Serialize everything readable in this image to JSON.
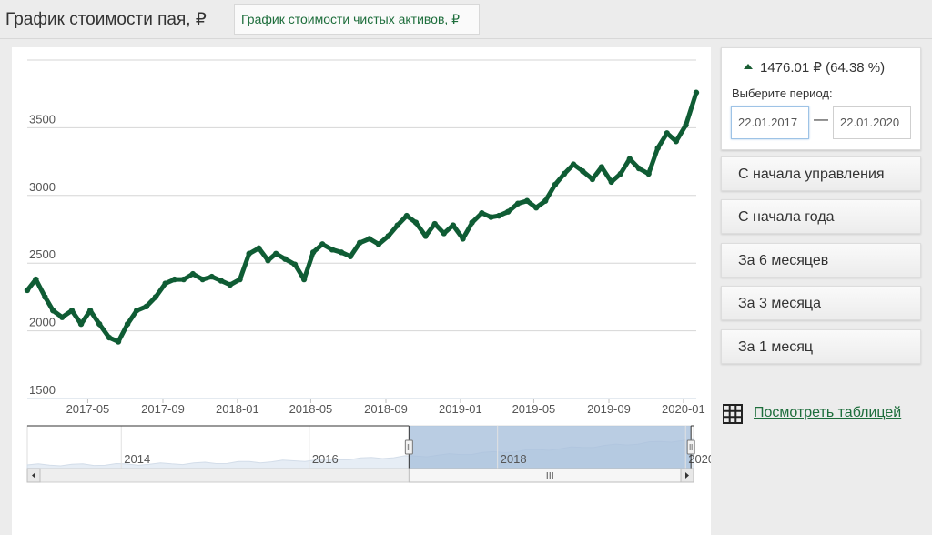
{
  "tabs": [
    {
      "label": "График стоимости пая, ₽",
      "active": true
    },
    {
      "label": "График стоимости чистых активов, ₽",
      "active": false
    }
  ],
  "colors": {
    "accent": "#1e6e3c",
    "line": "#0f5c34",
    "navigator_fill": "#a9c1dc",
    "background": "#ececec"
  },
  "summary": {
    "change_value": "1476.01 ₽",
    "change_percent": "(64.38 %)",
    "trend": "up"
  },
  "period_picker": {
    "label": "Выберите период:",
    "from": "22.01.2017",
    "to": "22.01.2020",
    "separator": "—"
  },
  "period_buttons": [
    {
      "label": "С начала управления"
    },
    {
      "label": "С начала года"
    },
    {
      "label": "За 6 месяцев"
    },
    {
      "label": "За 3 месяца"
    },
    {
      "label": "За 1 месяц"
    }
  ],
  "table_link": {
    "label": "Посмотреть таблицей",
    "icon": "table-grid-icon"
  },
  "chart_data": {
    "type": "line",
    "title": "",
    "xlabel": "",
    "ylabel": "",
    "ylim": [
      1500,
      4000
    ],
    "y_ticks": [
      "1500",
      "2000",
      "2500",
      "3000",
      "3500"
    ],
    "x_ticks": [
      "2017-05",
      "2017-09",
      "2018-01",
      "2018-05",
      "2018-09",
      "2019-01",
      "2019-05",
      "2019-09",
      "2020-01"
    ],
    "grid": true,
    "series": [
      {
        "x": [
          "2017-01-22",
          "2017-02-05",
          "2017-02-20",
          "2017-03-05",
          "2017-03-20",
          "2017-04-05",
          "2017-04-20",
          "2017-05-05",
          "2017-05-20",
          "2017-06-05",
          "2017-06-20",
          "2017-07-05",
          "2017-07-20",
          "2017-08-05",
          "2017-08-20",
          "2017-09-05",
          "2017-09-20",
          "2017-10-05",
          "2017-10-20",
          "2017-11-05",
          "2017-11-20",
          "2017-12-05",
          "2017-12-20",
          "2018-01-05",
          "2018-01-20",
          "2018-02-05",
          "2018-02-20",
          "2018-03-05",
          "2018-03-20",
          "2018-04-05",
          "2018-04-20",
          "2018-05-05",
          "2018-05-20",
          "2018-06-05",
          "2018-06-20",
          "2018-07-05",
          "2018-07-20",
          "2018-08-05",
          "2018-08-20",
          "2018-09-05",
          "2018-09-20",
          "2018-10-05",
          "2018-10-20",
          "2018-11-05",
          "2018-11-20",
          "2018-12-05",
          "2018-12-20",
          "2019-01-05",
          "2019-01-20",
          "2019-02-05",
          "2019-02-20",
          "2019-03-05",
          "2019-03-20",
          "2019-04-05",
          "2019-04-20",
          "2019-05-05",
          "2019-05-20",
          "2019-06-05",
          "2019-06-20",
          "2019-07-05",
          "2019-07-20",
          "2019-08-05",
          "2019-08-20",
          "2019-09-05",
          "2019-09-20",
          "2019-10-05",
          "2019-10-20",
          "2019-11-05",
          "2019-11-20",
          "2019-12-05",
          "2019-12-20",
          "2020-01-05",
          "2020-01-22"
        ],
        "values": [
          2300,
          2380,
          2250,
          2150,
          2100,
          2150,
          2050,
          2150,
          2050,
          1950,
          1920,
          2050,
          2150,
          2180,
          2250,
          2350,
          2380,
          2380,
          2420,
          2380,
          2400,
          2370,
          2340,
          2380,
          2570,
          2610,
          2520,
          2570,
          2530,
          2490,
          2380,
          2580,
          2640,
          2600,
          2580,
          2550,
          2650,
          2680,
          2640,
          2700,
          2780,
          2850,
          2800,
          2700,
          2790,
          2720,
          2780,
          2680,
          2800,
          2870,
          2840,
          2850,
          2880,
          2940,
          2960,
          2910,
          2960,
          3080,
          3160,
          3230,
          3180,
          3120,
          3210,
          3100,
          3160,
          3270,
          3200,
          3160,
          3350,
          3460,
          3400,
          3520,
          3760
        ]
      }
    ],
    "navigator": {
      "x_ticks": [
        "2014",
        "2016",
        "2018",
        "2020"
      ],
      "selection": [
        "2017-01-22",
        "2020-01-22"
      ]
    }
  }
}
